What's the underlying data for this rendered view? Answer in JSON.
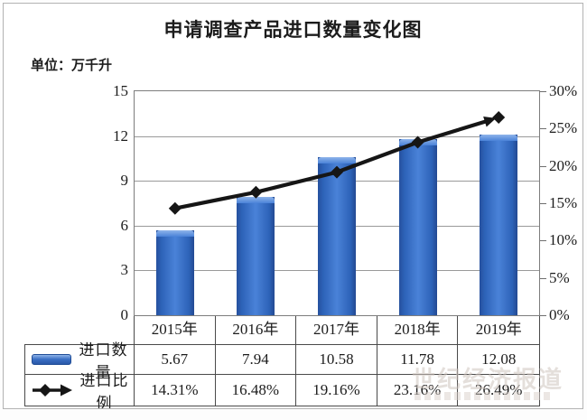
{
  "chart_data": {
    "type": "combo",
    "title": "申请调查产品进口数量变化图",
    "unit_label": "单位：万千升",
    "categories": [
      "2015年",
      "2016年",
      "2017年",
      "2018年",
      "2019年"
    ],
    "series": [
      {
        "name": "进口数量",
        "type": "bar",
        "axis": "left",
        "values": [
          5.67,
          7.94,
          10.58,
          11.78,
          12.08
        ],
        "color": "#2f66bd"
      },
      {
        "name": "进口比例",
        "type": "line",
        "axis": "right",
        "values": [
          14.31,
          16.48,
          19.16,
          23.16,
          26.49
        ],
        "unit": "%",
        "color": "#161616"
      }
    ],
    "left_axis": {
      "min": 0,
      "max": 15,
      "ticks": [
        "15",
        "12",
        "9",
        "6",
        "3",
        "0"
      ]
    },
    "right_axis": {
      "min": 0,
      "max": 30,
      "ticks": [
        "30%",
        "25%",
        "20%",
        "15%",
        "10%",
        "5%",
        "0%"
      ]
    },
    "grid": "horizontal",
    "legend_position": "table-left"
  },
  "table": {
    "years": [
      "2015年",
      "2016年",
      "2017年",
      "2018年",
      "2019年"
    ],
    "rows": [
      {
        "legend": "bar",
        "label": "进口数量",
        "values": [
          "5.67",
          "7.94",
          "10.58",
          "11.78",
          "12.08"
        ]
      },
      {
        "legend": "line",
        "label": "进口比例",
        "values": [
          "14.31%",
          "16.48%",
          "19.16%",
          "23.16%",
          "26.49%"
        ]
      }
    ]
  },
  "watermark": {
    "text": "世纪经济报道"
  },
  "colors": {
    "bar": "#2f66bd",
    "bar_highlight": "#7aa6e8",
    "line": "#161616",
    "grid": "#9a9a9a",
    "border": "#4a4a4a"
  }
}
